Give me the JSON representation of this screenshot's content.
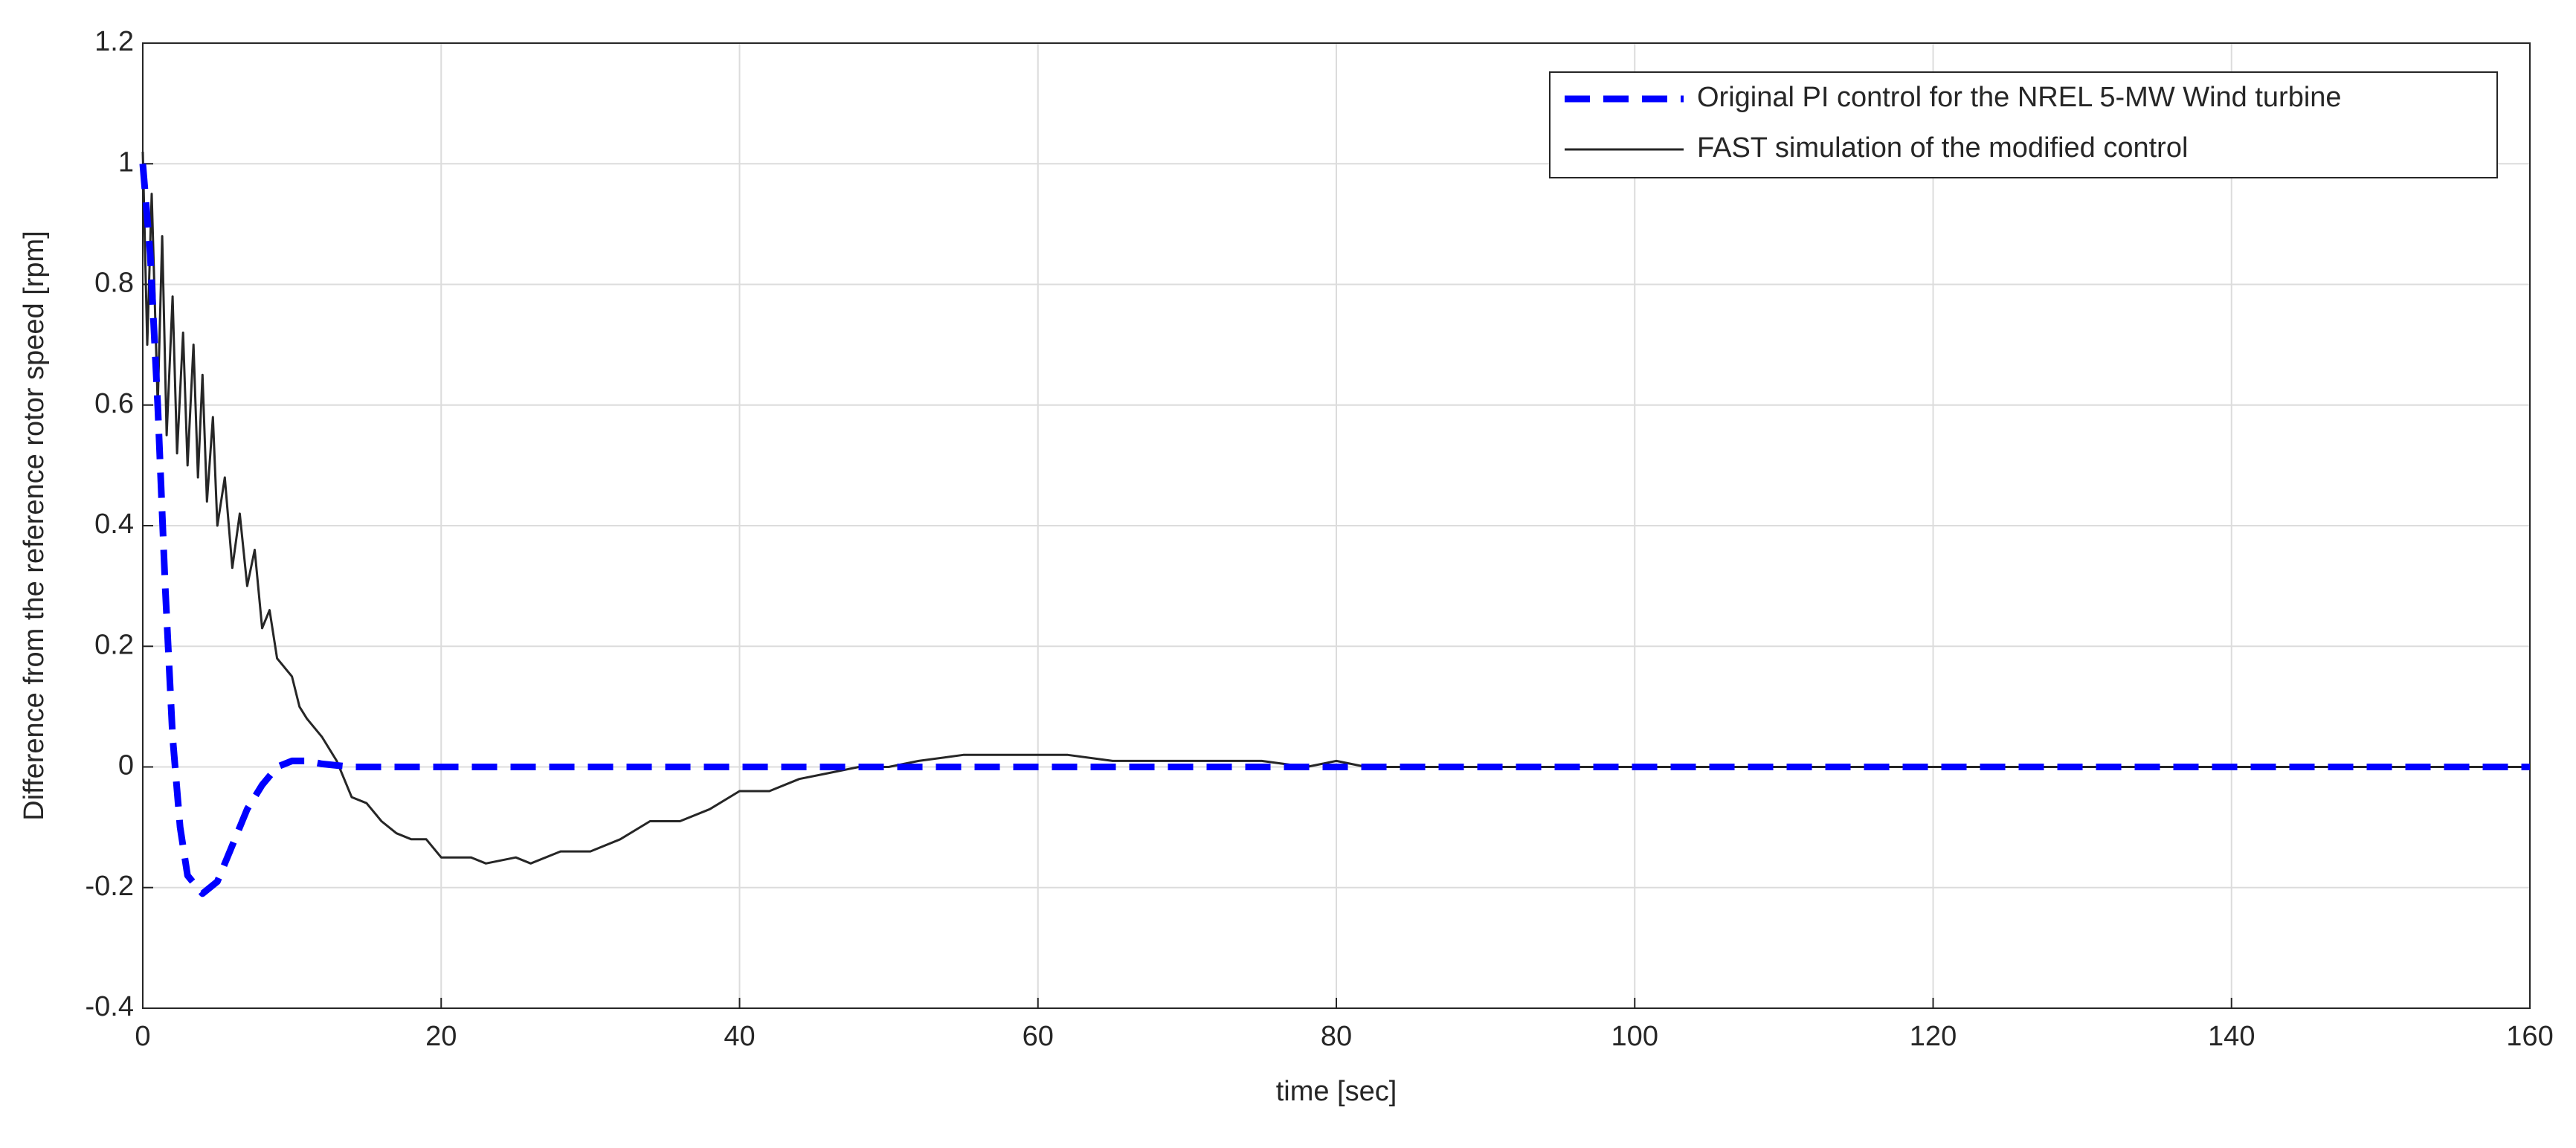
{
  "chart_data": {
    "type": "line",
    "xlabel": "time [sec]",
    "ylabel": "Difference from the reference rotor speed [rpm]",
    "xlim": [
      0,
      160
    ],
    "xticks": [
      0,
      20,
      40,
      60,
      80,
      100,
      120,
      140,
      160
    ],
    "ylim": [
      -0.4,
      1.2
    ],
    "yticks": [
      -0.4,
      -0.2,
      0,
      0.2,
      0.4,
      0.6,
      0.8,
      1,
      1.2
    ],
    "grid": true,
    "legend": "upper right",
    "series": [
      {
        "name": "Original PI control for the  NREL 5-MW Wind turbine",
        "color": "#0000ff",
        "dashed": true,
        "x": [
          0,
          0.5,
          1,
          1.5,
          2,
          2.5,
          3,
          4,
          5,
          6,
          7,
          8,
          9,
          10,
          11,
          12,
          14,
          20,
          160
        ],
        "values": [
          1.0,
          0.85,
          0.6,
          0.3,
          0.05,
          -0.1,
          -0.18,
          -0.21,
          -0.19,
          -0.13,
          -0.07,
          -0.03,
          0,
          0.01,
          0.01,
          0.005,
          0,
          0,
          0
        ]
      },
      {
        "name": "FAST simulation of the modified control",
        "color": "#262626",
        "dashed": false,
        "x": [
          0,
          0.3,
          0.6,
          1,
          1.3,
          1.6,
          2,
          2.3,
          2.7,
          3,
          3.4,
          3.7,
          4,
          4.3,
          4.7,
          5,
          5.5,
          6,
          6.5,
          7,
          7.5,
          8,
          8.5,
          9,
          10,
          10.5,
          11,
          12,
          13,
          14,
          15,
          16,
          17,
          18,
          19,
          20,
          22,
          23,
          25,
          26,
          28,
          30,
          32,
          34,
          36,
          38,
          40,
          42,
          44,
          46,
          48,
          50,
          52,
          55,
          58,
          62,
          65,
          70,
          75,
          78,
          80,
          82,
          160
        ],
        "values": [
          1.02,
          0.7,
          0.95,
          0.6,
          0.88,
          0.55,
          0.78,
          0.52,
          0.72,
          0.5,
          0.7,
          0.48,
          0.65,
          0.44,
          0.58,
          0.4,
          0.48,
          0.33,
          0.42,
          0.3,
          0.36,
          0.23,
          0.26,
          0.18,
          0.15,
          0.1,
          0.08,
          0.05,
          0.01,
          -0.05,
          -0.06,
          -0.09,
          -0.11,
          -0.12,
          -0.12,
          -0.15,
          -0.15,
          -0.16,
          -0.15,
          -0.16,
          -0.14,
          -0.14,
          -0.12,
          -0.09,
          -0.09,
          -0.07,
          -0.04,
          -0.04,
          -0.02,
          -0.01,
          0,
          0,
          0.01,
          0.02,
          0.02,
          0.02,
          0.01,
          0.01,
          0.01,
          0,
          0.01,
          0,
          0
        ]
      }
    ]
  }
}
